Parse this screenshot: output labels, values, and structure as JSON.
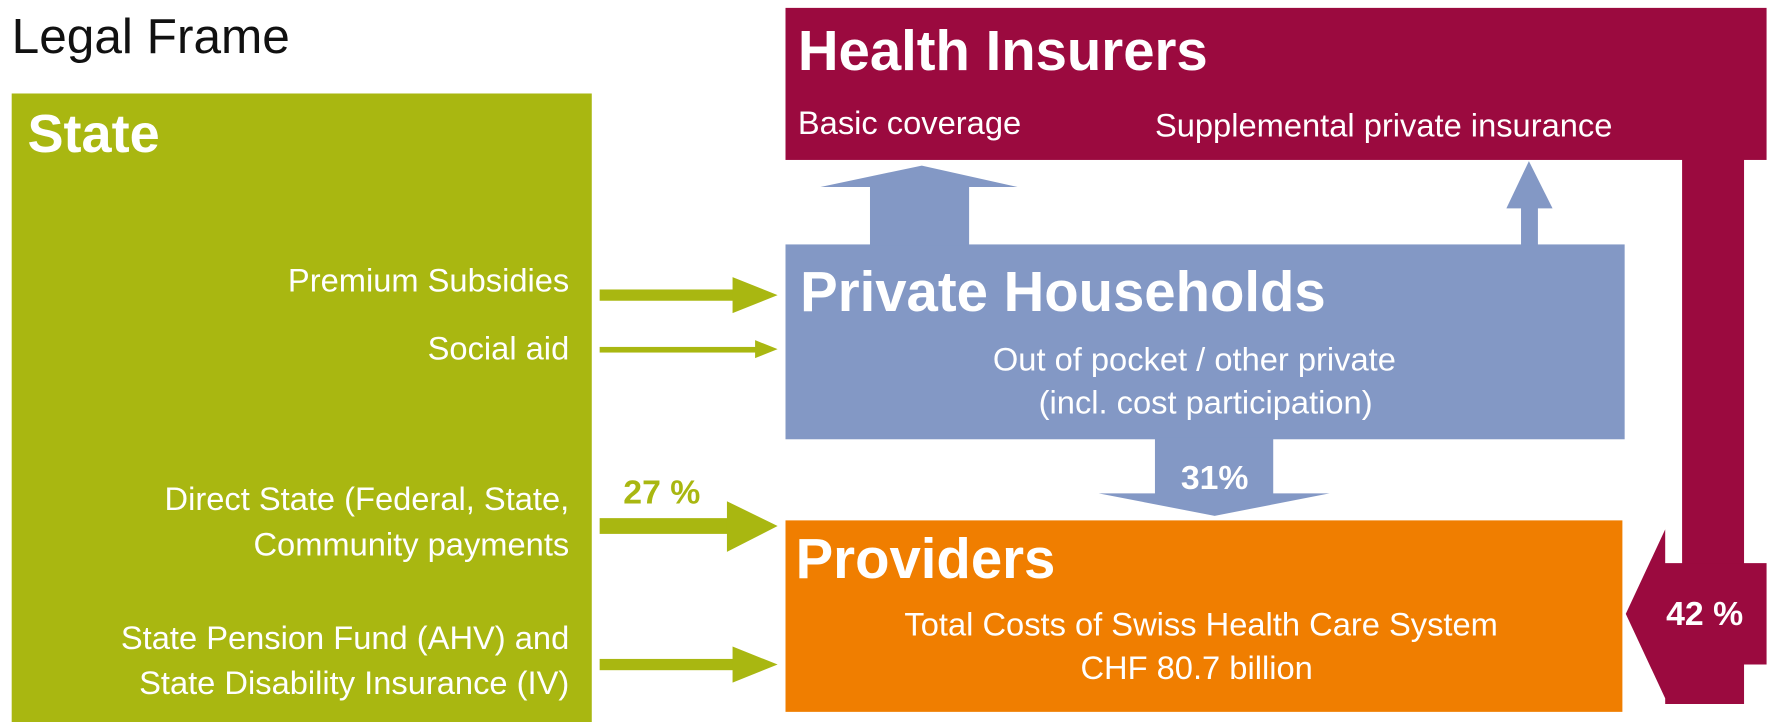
{
  "title": "Legal Frame",
  "state": {
    "title": "State",
    "flows": [
      {
        "lines": [
          "Premium Subsidies"
        ]
      },
      {
        "lines": [
          "Social aid"
        ]
      },
      {
        "lines": [
          "Direct State (Federal, State,",
          "Community payments"
        ],
        "share": "27 %"
      },
      {
        "lines": [
          "State Pension Fund (AHV) and",
          "State Disability Insurance (IV)"
        ]
      }
    ]
  },
  "health_insurers": {
    "title": "Health Insurers",
    "items": [
      "Basic coverage",
      "Supplemental private insurance"
    ],
    "share": "42 %"
  },
  "private_households": {
    "title": "Private Households",
    "lines": [
      "Out of pocket / other private",
      "(incl. cost participation)"
    ],
    "share": "31%"
  },
  "providers": {
    "title": "Providers",
    "lines": [
      "Total Costs of Swiss Health Care System",
      "CHF 80.7 billion"
    ]
  }
}
